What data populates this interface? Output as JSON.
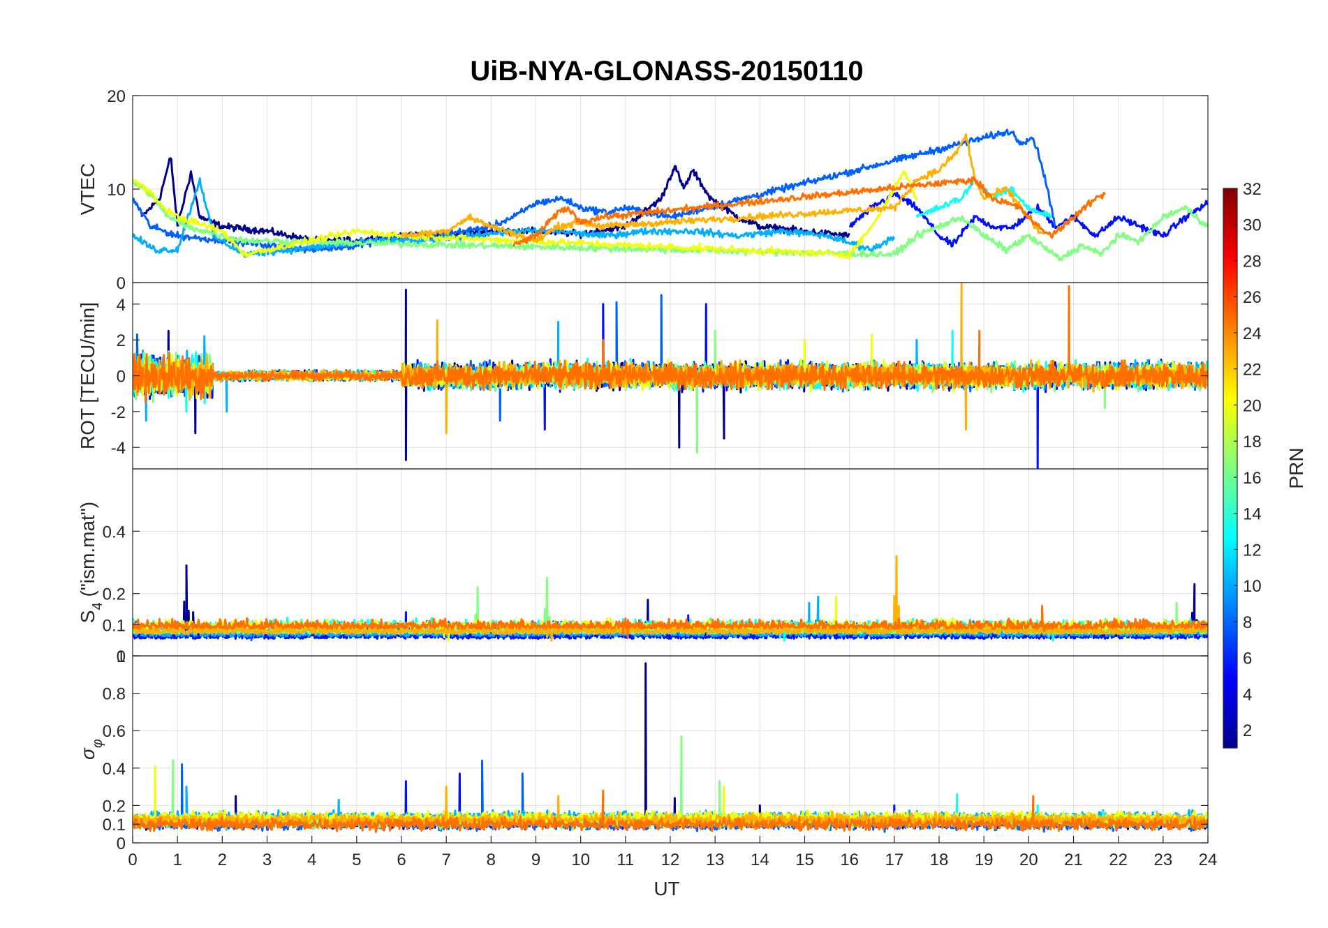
{
  "chart_data": {
    "type": "line",
    "title": "UiB-NYA-GLONASS-20150110",
    "xlabel": "UT",
    "x_ticks": [
      "0",
      "1",
      "2",
      "3",
      "4",
      "5",
      "6",
      "7",
      "8",
      "9",
      "10",
      "11",
      "12",
      "13",
      "14",
      "15",
      "16",
      "17",
      "18",
      "19",
      "20",
      "21",
      "22",
      "23",
      "24"
    ],
    "xlim": [
      0,
      24
    ],
    "grid": true,
    "colorbar": {
      "label": "PRN",
      "range": [
        1,
        32
      ],
      "ticks": [
        "2",
        "4",
        "6",
        "8",
        "10",
        "12",
        "14",
        "16",
        "18",
        "20",
        "22",
        "24",
        "26",
        "28",
        "30",
        "32"
      ],
      "colormap": "jet"
    },
    "panels": [
      {
        "id": "vtec",
        "ylabel": "VTEC",
        "ylim": [
          0,
          20
        ],
        "y_ticks": [
          "0",
          "10",
          "20"
        ],
        "y_tick_values": [
          0,
          10,
          20
        ]
      },
      {
        "id": "rot",
        "ylabel": "ROT [TECU/min]",
        "ylim": [
          -5.2,
          5.2
        ],
        "y_ticks": [
          "-4",
          "-2",
          "0",
          "2",
          "4"
        ],
        "y_tick_values": [
          -4,
          -2,
          0,
          2,
          4
        ]
      },
      {
        "id": "s4",
        "ylabel_main": "S",
        "ylabel_sub": "4",
        "ylabel_rest": " (\"ism.mat\")",
        "ylim": [
          0,
          0.6
        ],
        "y_ticks": [
          "0",
          "0.1",
          "0.2",
          "0.4"
        ],
        "y_tick_values": [
          0,
          0.1,
          0.2,
          0.4
        ]
      },
      {
        "id": "sigphi",
        "ylabel_main": "σ",
        "ylabel_sub": "φ",
        "ylim": [
          0,
          1
        ],
        "y_ticks": [
          "0",
          "0.1",
          "0.2",
          "0.4",
          "0.6",
          "0.8",
          "1"
        ],
        "y_tick_values": [
          0,
          0.1,
          0.2,
          0.4,
          0.6,
          0.8,
          1
        ]
      }
    ],
    "series": [
      {
        "prn": 1,
        "color": "#00008f",
        "vtec": [
          [
            0.2,
            7
          ],
          [
            0.6,
            9
          ],
          [
            0.85,
            13.5
          ],
          [
            1.0,
            6
          ],
          [
            1.3,
            11.8
          ],
          [
            1.5,
            7
          ],
          [
            2,
            6
          ],
          [
            3,
            5.5
          ],
          [
            4,
            4.5
          ],
          [
            5,
            4.5
          ],
          [
            6,
            5
          ],
          [
            7,
            5
          ],
          [
            8,
            5.5
          ],
          [
            9,
            5.5
          ],
          [
            10,
            5.2
          ],
          [
            11,
            6
          ],
          [
            11.8,
            9
          ],
          [
            12.1,
            12.5
          ],
          [
            12.3,
            10
          ],
          [
            12.5,
            12
          ],
          [
            12.9,
            9
          ],
          [
            13.5,
            7
          ],
          [
            14,
            6
          ],
          [
            15,
            5.5
          ],
          [
            16,
            5
          ]
        ],
        "rot_spikes": [
          [
            0.8,
            2.5
          ],
          [
            1.4,
            -3.2
          ],
          [
            6.1,
            4.8
          ],
          [
            6.1,
            -4.7
          ],
          [
            12.2,
            -4
          ],
          [
            13.2,
            -3.5
          ]
        ],
        "s4_spikes": [
          [
            1.2,
            0.29
          ],
          [
            1.35,
            0.14
          ],
          [
            11.5,
            0.18
          ],
          [
            23.7,
            0.23
          ]
        ],
        "sig_spikes": [
          [
            11.45,
            0.96
          ],
          [
            2.3,
            0.25
          ],
          [
            12.1,
            0.24
          ],
          [
            14,
            0.2
          ]
        ]
      },
      {
        "prn": 5,
        "color": "#0010ff",
        "vtec": [
          [
            16,
            6
          ],
          [
            16.5,
            8
          ],
          [
            17,
            9.5
          ],
          [
            17.5,
            8
          ],
          [
            18,
            5
          ],
          [
            18.3,
            4
          ],
          [
            18.8,
            7
          ],
          [
            19.2,
            6
          ],
          [
            19.6,
            5.8
          ],
          [
            20.2,
            8
          ],
          [
            20.6,
            6
          ],
          [
            21,
            7
          ],
          [
            21.5,
            5
          ],
          [
            22,
            7
          ],
          [
            22.5,
            6
          ],
          [
            23,
            5
          ],
          [
            23.5,
            7
          ],
          [
            24,
            8.5
          ]
        ],
        "rot_spikes": [
          [
            12.8,
            4
          ],
          [
            20.2,
            -5.2
          ],
          [
            9.2,
            -3
          ],
          [
            10.5,
            4
          ]
        ],
        "s4_spikes": [
          [
            6.1,
            0.14
          ],
          [
            12.4,
            0.13
          ]
        ],
        "sig_spikes": [
          [
            7.3,
            0.37
          ],
          [
            6.1,
            0.33
          ],
          [
            17,
            0.2
          ]
        ]
      },
      {
        "prn": 8,
        "color": "#0060ff",
        "vtec": [
          [
            0,
            9
          ],
          [
            0.4,
            6
          ],
          [
            1,
            5
          ],
          [
            2,
            4.5
          ],
          [
            3,
            4
          ],
          [
            4,
            3.5
          ],
          [
            5,
            4
          ],
          [
            6,
            5
          ],
          [
            7,
            5.2
          ],
          [
            8,
            6
          ],
          [
            8.5,
            7
          ],
          [
            9,
            8.5
          ],
          [
            9.6,
            9
          ],
          [
            10,
            8
          ],
          [
            10.6,
            7.5
          ],
          [
            11,
            8
          ],
          [
            11.5,
            7.5
          ],
          [
            12,
            7
          ],
          [
            19.6,
            16.2
          ],
          [
            19.8,
            15
          ],
          [
            20.1,
            15.5
          ],
          [
            20.3,
            12.5
          ],
          [
            20.6,
            6
          ]
        ],
        "rot_spikes": [
          [
            0.1,
            2.3
          ],
          [
            8.2,
            -2.5
          ],
          [
            10.8,
            4.1
          ],
          [
            11.8,
            4.5
          ]
        ],
        "s4_spikes": [
          [
            2.6,
            0.1
          ],
          [
            19.6,
            0.11
          ]
        ],
        "sig_spikes": [
          [
            1.1,
            0.42
          ],
          [
            7.8,
            0.44
          ],
          [
            8.7,
            0.37
          ]
        ]
      },
      {
        "prn": 11,
        "color": "#00b0ff",
        "vtec": [
          [
            0,
            5
          ],
          [
            0.5,
            3.5
          ],
          [
            1,
            3.5
          ],
          [
            1.5,
            11
          ],
          [
            1.8,
            5
          ],
          [
            2.5,
            3
          ],
          [
            3.5,
            3.5
          ],
          [
            4.5,
            4
          ],
          [
            5.5,
            4.5
          ],
          [
            6.5,
            4.5
          ],
          [
            7.5,
            5
          ],
          [
            8.5,
            5.5
          ],
          [
            9.5,
            5.5
          ],
          [
            10.5,
            5
          ],
          [
            11.5,
            5.5
          ],
          [
            12.5,
            5.5
          ],
          [
            13.5,
            5
          ],
          [
            14.5,
            5.5
          ],
          [
            15.5,
            5
          ],
          [
            16.5,
            3.5
          ],
          [
            17,
            5
          ]
        ],
        "rot_spikes": [
          [
            0.3,
            -2.5
          ],
          [
            1.6,
            2.2
          ],
          [
            9.5,
            3
          ],
          [
            17.5,
            2
          ],
          [
            2.1,
            -2
          ]
        ],
        "s4_spikes": [
          [
            15.1,
            0.17
          ],
          [
            15.3,
            0.19
          ]
        ],
        "sig_spikes": [
          [
            1.2,
            0.3
          ],
          [
            4.6,
            0.23
          ]
        ]
      },
      {
        "prn": 14,
        "color": "#10ffef",
        "vtec": [
          [
            17.5,
            7
          ],
          [
            18,
            8
          ],
          [
            18.5,
            9
          ],
          [
            18.8,
            11
          ],
          [
            19.2,
            9
          ],
          [
            19.6,
            10
          ],
          [
            20,
            8
          ],
          [
            20.5,
            7
          ]
        ],
        "rot_spikes": [
          [
            1.2,
            -2
          ],
          [
            18.3,
            2.5
          ]
        ],
        "s4_spikes": [
          [
            14.5,
            0.1
          ],
          [
            20.5,
            0.1
          ]
        ],
        "sig_spikes": [
          [
            18.4,
            0.26
          ],
          [
            20.2,
            0.2
          ]
        ]
      },
      {
        "prn": 17,
        "color": "#80ff80",
        "vtec": [
          [
            0,
            10.8
          ],
          [
            0.4,
            9.5
          ],
          [
            0.8,
            7
          ],
          [
            1.2,
            6
          ],
          [
            2,
            5
          ],
          [
            2.5,
            4.5
          ],
          [
            17,
            3
          ],
          [
            17.5,
            5
          ],
          [
            18,
            6
          ],
          [
            18.5,
            7
          ],
          [
            19,
            5
          ],
          [
            19.5,
            3.5
          ],
          [
            20,
            5
          ],
          [
            20.7,
            2.5
          ],
          [
            21.2,
            4
          ],
          [
            21.6,
            3
          ],
          [
            22,
            5
          ],
          [
            22.5,
            4.5
          ],
          [
            23,
            7
          ],
          [
            23.5,
            8
          ],
          [
            24,
            6
          ]
        ],
        "rot_spikes": [
          [
            12.6,
            -4.3
          ],
          [
            13,
            2.5
          ],
          [
            21.7,
            -1.8
          ]
        ],
        "s4_spikes": [
          [
            7.7,
            0.22
          ],
          [
            9.25,
            0.25
          ],
          [
            23.3,
            0.17
          ]
        ],
        "sig_spikes": [
          [
            0.9,
            0.44
          ],
          [
            12.25,
            0.57
          ],
          [
            13.1,
            0.33
          ]
        ]
      },
      {
        "prn": 19,
        "color": "#efff10",
        "vtec": [
          [
            0,
            11
          ],
          [
            0.3,
            10
          ],
          [
            0.7,
            8
          ],
          [
            1,
            7
          ],
          [
            2,
            5.5
          ],
          [
            2.5,
            3
          ],
          [
            3,
            3.5
          ],
          [
            4,
            4.5
          ],
          [
            5,
            5.5
          ],
          [
            6,
            5
          ],
          [
            16,
            3
          ],
          [
            16.5,
            6
          ],
          [
            17,
            10
          ],
          [
            17.2,
            12
          ],
          [
            17.5,
            9
          ]
        ],
        "rot_spikes": [
          [
            15,
            2
          ],
          [
            16.5,
            2.3
          ]
        ],
        "s4_spikes": [
          [
            15.7,
            0.19
          ],
          [
            7,
            0.1
          ]
        ],
        "sig_spikes": [
          [
            0.5,
            0.41
          ],
          [
            13.2,
            0.3
          ]
        ]
      },
      {
        "prn": 22,
        "color": "#ffb000",
        "vtec": [
          [
            6,
            5
          ],
          [
            7,
            5.5
          ],
          [
            7.5,
            7
          ],
          [
            8,
            6
          ],
          [
            9,
            4.5
          ],
          [
            9.5,
            6
          ],
          [
            10,
            6.5
          ],
          [
            10.5,
            6
          ],
          [
            17,
            8
          ],
          [
            17.5,
            11
          ],
          [
            18,
            12
          ],
          [
            18.4,
            14
          ],
          [
            18.6,
            15.8
          ],
          [
            18.8,
            11
          ],
          [
            19,
            9
          ],
          [
            19.5,
            10
          ],
          [
            20,
            7
          ],
          [
            20.3,
            5
          ]
        ],
        "rot_spikes": [
          [
            18.5,
            5.2
          ],
          [
            7,
            -3.2
          ],
          [
            6.8,
            3.1
          ],
          [
            18.6,
            -3
          ]
        ],
        "s4_spikes": [
          [
            17.05,
            0.32
          ],
          [
            9.3,
            0.1
          ]
        ],
        "sig_spikes": [
          [
            7.0,
            0.3
          ],
          [
            9.5,
            0.25
          ]
        ]
      },
      {
        "prn": 24,
        "color": "#ff7000",
        "vtec": [
          [
            8.5,
            4
          ],
          [
            9,
            5
          ],
          [
            9.5,
            7.5
          ],
          [
            9.7,
            8
          ],
          [
            10,
            6.5
          ],
          [
            10.5,
            7
          ],
          [
            18.8,
            11
          ],
          [
            19.2,
            9
          ],
          [
            19.8,
            8
          ],
          [
            20.2,
            6
          ],
          [
            20.5,
            5
          ],
          [
            21,
            7
          ],
          [
            21.5,
            9
          ],
          [
            21.7,
            9.5
          ]
        ],
        "rot_spikes": [
          [
            20.9,
            5
          ],
          [
            18.9,
            2.5
          ],
          [
            10.5,
            2
          ]
        ],
        "s4_spikes": [
          [
            20.3,
            0.16
          ],
          [
            11.0,
            0.12
          ]
        ],
        "sig_spikes": [
          [
            10.5,
            0.28
          ],
          [
            20.1,
            0.25
          ]
        ]
      }
    ]
  }
}
